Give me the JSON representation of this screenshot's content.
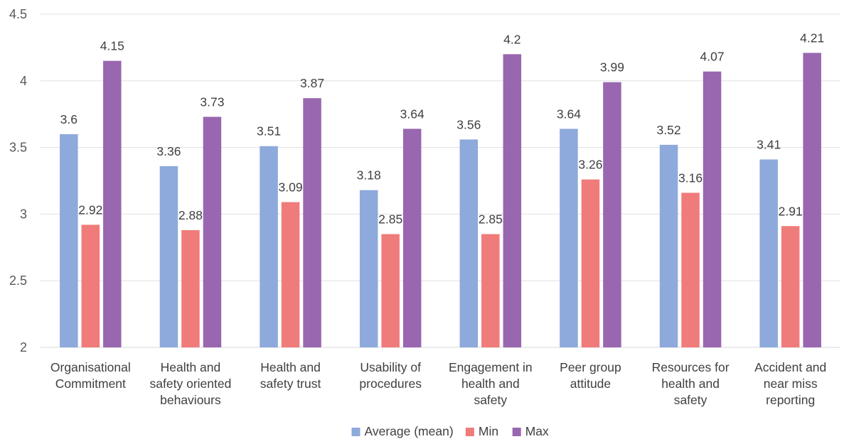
{
  "chart_data": {
    "type": "bar",
    "title": "",
    "xlabel": "",
    "ylabel": "",
    "ylim": [
      2,
      4.5
    ],
    "yticks": [
      "2",
      "2.5",
      "3",
      "3.5",
      "4",
      "4.5"
    ],
    "grid": true,
    "legend_position": "bottom",
    "categories": [
      [
        "Organisational",
        "Commitment"
      ],
      [
        "Health and",
        "safety oriented",
        "behaviours"
      ],
      [
        "Health and",
        "safety trust"
      ],
      [
        "Usability of",
        "procedures"
      ],
      [
        "Engagement in",
        "health and",
        "safety"
      ],
      [
        "Peer group",
        "attitude"
      ],
      [
        "Resources for",
        "health and",
        "safety"
      ],
      [
        "Accident and",
        "near miss",
        "reporting"
      ]
    ],
    "series": [
      {
        "name": "Average (mean)",
        "color": "#8EA9DB",
        "values": [
          3.6,
          3.36,
          3.51,
          3.18,
          3.56,
          3.64,
          3.52,
          3.41
        ]
      },
      {
        "name": "Min",
        "color": "#F07B7B",
        "values": [
          2.92,
          2.88,
          3.09,
          2.85,
          2.85,
          3.26,
          3.16,
          2.91
        ]
      },
      {
        "name": "Max",
        "color": "#9966B0",
        "values": [
          4.15,
          3.73,
          3.87,
          3.64,
          4.2,
          3.99,
          4.07,
          4.21
        ]
      }
    ],
    "data_labels": [
      [
        "3.6",
        "3.36",
        "3.51",
        "3.18",
        "3.56",
        "3.64",
        "3.52",
        "3.41"
      ],
      [
        "2.92",
        "2.88",
        "3.09",
        "2.85",
        "2.85",
        "3.26",
        "3.16",
        "2.91"
      ],
      [
        "4.15",
        "3.73",
        "3.87",
        "3.64",
        "4.2",
        "3.99",
        "4.07",
        "4.21"
      ]
    ]
  }
}
